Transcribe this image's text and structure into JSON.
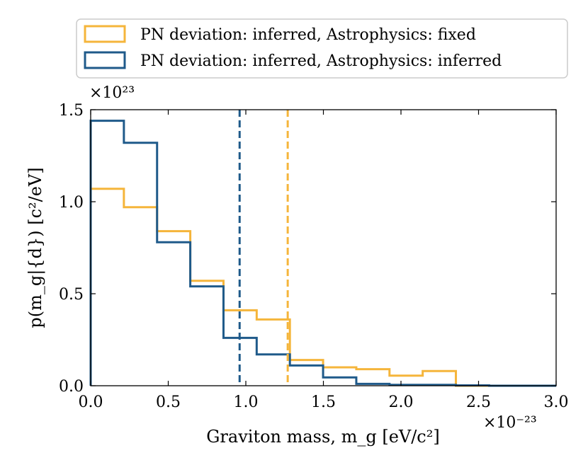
{
  "chart_data": {
    "type": "histogram",
    "xlabel": "Graviton mass, m_g [eV/c²]",
    "ylabel": "p(m_g|{d}) [c²/eV]",
    "x_multiplier": "×10⁻²³",
    "y_multiplier": "×10²³",
    "xlim": [
      0.0,
      3.0
    ],
    "ylim": [
      0.0,
      1.5
    ],
    "xticks": [
      "0.0",
      "0.5",
      "1.0",
      "1.5",
      "2.0",
      "2.5",
      "3.0"
    ],
    "yticks": [
      "0.0",
      "0.5",
      "1.0",
      "1.5"
    ],
    "legend_position": "top, above plot",
    "bin_edges": [
      0.0,
      0.214,
      0.428,
      0.642,
      0.856,
      1.07,
      1.284,
      1.498,
      1.712,
      1.926,
      2.14,
      2.354,
      2.568,
      2.782,
      3.0
    ],
    "series": [
      {
        "name": "PN deviation: inferred, Astrophysics: fixed",
        "color": "#f5b53b",
        "values": [
          1.07,
          0.97,
          0.84,
          0.57,
          0.41,
          0.36,
          0.14,
          0.1,
          0.09,
          0.055,
          0.08,
          0.0,
          0.0,
          0.0
        ],
        "vline": 1.27
      },
      {
        "name": "PN deviation: inferred, Astrophysics: inferred",
        "color": "#1f5a8a",
        "values": [
          1.44,
          1.32,
          0.78,
          0.54,
          0.26,
          0.17,
          0.11,
          0.045,
          0.01,
          0.005,
          0.005,
          0.002,
          0.0,
          0.0
        ],
        "vline": 0.96
      }
    ]
  }
}
